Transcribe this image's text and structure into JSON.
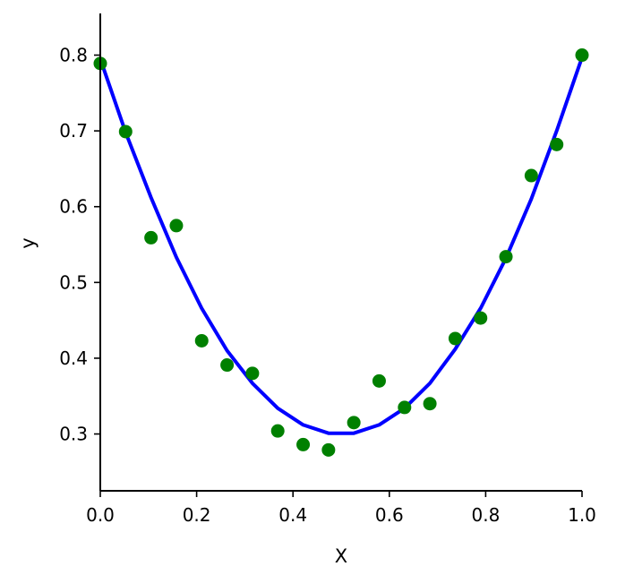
{
  "chart_data": {
    "type": "scatter",
    "title": "",
    "xlabel": "X",
    "ylabel": "y",
    "xlim": [
      0.0,
      1.0
    ],
    "ylim": [
      0.225,
      0.855
    ],
    "grid": false,
    "x_ticks": [
      0.0,
      0.2,
      0.4,
      0.6,
      0.8,
      1.0
    ],
    "x_tick_labels": [
      "0.0",
      "0.2",
      "0.4",
      "0.6",
      "0.8",
      "1.0"
    ],
    "y_ticks": [
      0.3,
      0.4,
      0.5,
      0.6,
      0.7,
      0.8
    ],
    "y_tick_labels": [
      "0.3",
      "0.4",
      "0.5",
      "0.6",
      "0.7",
      "0.8"
    ],
    "series": [
      {
        "type": "scatter",
        "color": "#008000",
        "x": [
          0.0,
          0.0526,
          0.1053,
          0.1579,
          0.2105,
          0.2632,
          0.3158,
          0.3684,
          0.4211,
          0.4737,
          0.5263,
          0.5789,
          0.6316,
          0.6842,
          0.7368,
          0.7895,
          0.8421,
          0.8947,
          0.9474,
          1.0
        ],
        "y": [
          0.789,
          0.699,
          0.559,
          0.575,
          0.423,
          0.391,
          0.38,
          0.304,
          0.286,
          0.279,
          0.315,
          0.37,
          0.335,
          0.34,
          0.426,
          0.453,
          0.534,
          0.641,
          0.682,
          0.8
        ]
      },
      {
        "type": "line",
        "color": "#0000ff",
        "x": [
          0.0,
          0.0526,
          0.1053,
          0.1579,
          0.2105,
          0.2632,
          0.3158,
          0.3684,
          0.4211,
          0.4737,
          0.5263,
          0.5789,
          0.6316,
          0.6842,
          0.7368,
          0.7895,
          0.8421,
          0.8947,
          0.9474,
          1.0
        ],
        "y": [
          0.795,
          0.698,
          0.612,
          0.533,
          0.466,
          0.41,
          0.367,
          0.334,
          0.312,
          0.301,
          0.301,
          0.312,
          0.334,
          0.367,
          0.412,
          0.466,
          0.532,
          0.61,
          0.7,
          0.797
        ]
      }
    ]
  }
}
